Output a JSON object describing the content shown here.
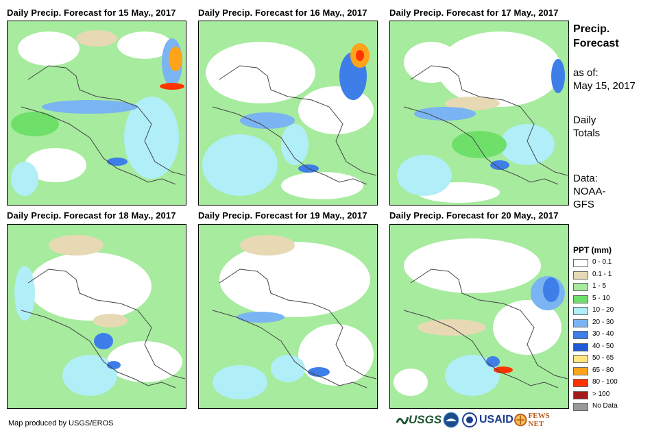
{
  "panels": [
    {
      "title": "Daily Precip. Forecast for 15 May., 2017"
    },
    {
      "title": "Daily Precip. Forecast for 16 May., 2017"
    },
    {
      "title": "Daily Precip. Forecast for 17 May., 2017"
    },
    {
      "title": "Daily Precip. Forecast for 18 May., 2017"
    },
    {
      "title": "Daily Precip. Forecast for 19 May., 2017"
    },
    {
      "title": "Daily Precip. Forecast for 20 May., 2017"
    }
  ],
  "side": {
    "title_line1": "Precip.",
    "title_line2": "Forecast",
    "asof_line1": "as of:",
    "asof_line2": "May 15, 2017",
    "totals_line1": "Daily",
    "totals_line2": "Totals",
    "data_line1": "Data:",
    "data_line2": "NOAA-",
    "data_line3": "GFS"
  },
  "legend": {
    "title": "PPT (mm)",
    "items": [
      {
        "label": "0 - 0.1",
        "color": "#ffffff"
      },
      {
        "label": "0.1 - 1",
        "color": "#e8d9b5"
      },
      {
        "label": "1 - 5",
        "color": "#a6eb9e"
      },
      {
        "label": "5 - 10",
        "color": "#6ee06a"
      },
      {
        "label": "10 - 20",
        "color": "#b0eef8"
      },
      {
        "label": "20 - 30",
        "color": "#7ab4f2"
      },
      {
        "label": "30 - 40",
        "color": "#3d7ee8"
      },
      {
        "label": "40 - 50",
        "color": "#1f5ad6"
      },
      {
        "label": "50 - 65",
        "color": "#ffe680"
      },
      {
        "label": "65 - 80",
        "color": "#ffa31a"
      },
      {
        "label": "80 - 100",
        "color": "#ff3300"
      },
      {
        "label": "> 100",
        "color": "#a31a1a"
      },
      {
        "label": "No Data",
        "color": "#999999"
      }
    ]
  },
  "credit": "Map produced by USGS/EROS",
  "logos": {
    "usgs": "USGS",
    "usaid": "USAID",
    "fewsnet": "FEWS NET"
  }
}
